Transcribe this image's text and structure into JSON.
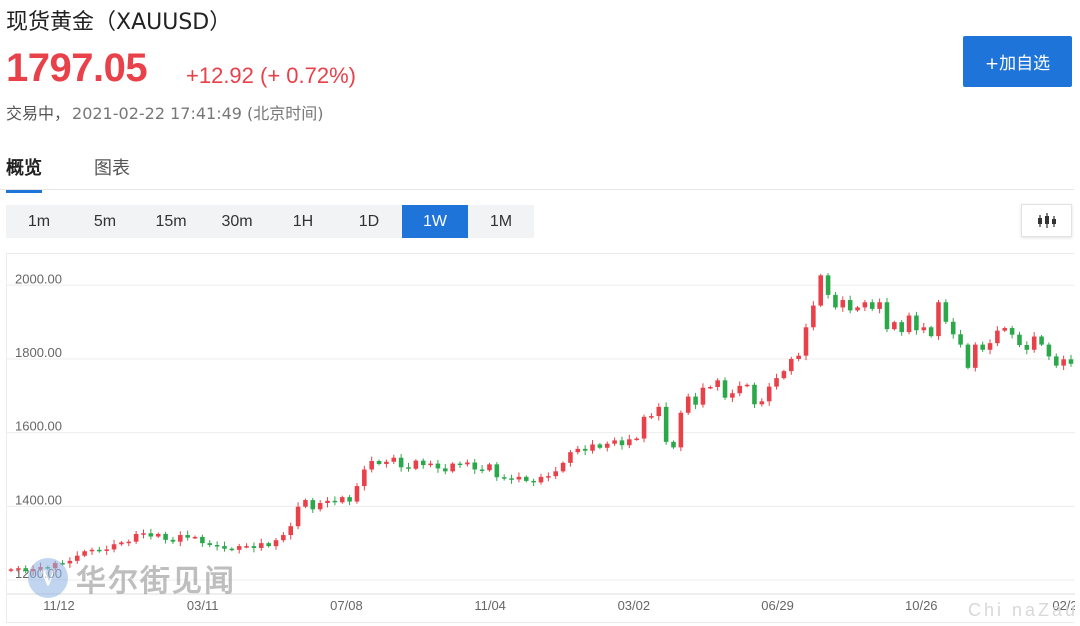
{
  "header": {
    "title": "现货黄金（XAUUSD）",
    "price": "1797.05",
    "change": "+12.92 (+ 0.72%)",
    "status": "交易中，",
    "timestamp": "2021-02-22 17:41:49 (北京时间)",
    "add_label": "+加自选"
  },
  "tabs": [
    {
      "label": "概览",
      "active": true
    },
    {
      "label": "图表",
      "active": false
    }
  ],
  "periods": [
    {
      "label": "1m",
      "active": false
    },
    {
      "label": "5m",
      "active": false
    },
    {
      "label": "15m",
      "active": false
    },
    {
      "label": "30m",
      "active": false
    },
    {
      "label": "1H",
      "active": false
    },
    {
      "label": "1D",
      "active": false
    },
    {
      "label": "1W",
      "active": true
    },
    {
      "label": "1M",
      "active": false
    }
  ],
  "chart_type_icon": "candlestick-icon",
  "watermark": {
    "logo": "V",
    "text": "华尔街见闻",
    "credit": "Chi naZau"
  },
  "colors": {
    "up": "#e8414a",
    "down": "#2aa84a",
    "accent": "#1e74d9"
  },
  "chart_data": {
    "type": "candlestick",
    "y_ticks": [
      "2000.00",
      "1800.00",
      "1600.00",
      "1400.00",
      "1200.00"
    ],
    "x_ticks": [
      "11/12",
      "03/11",
      "07/08",
      "11/04",
      "03/02",
      "06/29",
      "10/26",
      "02/2"
    ],
    "ylim": [
      1162,
      2085
    ],
    "grid": true,
    "closes": [
      1229,
      1232,
      1224,
      1230,
      1235,
      1232,
      1246,
      1245,
      1252,
      1266,
      1278,
      1282,
      1280,
      1283,
      1297,
      1302,
      1304,
      1325,
      1327,
      1318,
      1325,
      1309,
      1304,
      1322,
      1315,
      1317,
      1300,
      1295,
      1292,
      1285,
      1282,
      1292,
      1292,
      1287,
      1300,
      1292,
      1308,
      1322,
      1346,
      1399,
      1417,
      1392,
      1409,
      1415,
      1411,
      1425,
      1413,
      1455,
      1500,
      1523,
      1515,
      1521,
      1532,
      1506,
      1502,
      1524,
      1512,
      1516,
      1503,
      1495,
      1516,
      1514,
      1519,
      1500,
      1498,
      1514,
      1479,
      1476,
      1473,
      1480,
      1469,
      1465,
      1480,
      1482,
      1495,
      1518,
      1547,
      1556,
      1551,
      1568,
      1559,
      1570,
      1579,
      1566,
      1582,
      1584,
      1643,
      1645,
      1670,
      1575,
      1560,
      1654,
      1698,
      1676,
      1722,
      1724,
      1742,
      1695,
      1707,
      1727,
      1730,
      1677,
      1685,
      1725,
      1748,
      1767,
      1800,
      1809,
      1886,
      1945,
      2027,
      1974,
      1940,
      1960,
      1932,
      1940,
      1954,
      1936,
      1954,
      1881,
      1900,
      1873,
      1918,
      1878,
      1886,
      1862,
      1954,
      1901,
      1867,
      1839,
      1776,
      1839,
      1825,
      1843,
      1877,
      1884,
      1866,
      1838,
      1825,
      1861,
      1839,
      1807,
      1782,
      1799,
      1787
    ]
  }
}
